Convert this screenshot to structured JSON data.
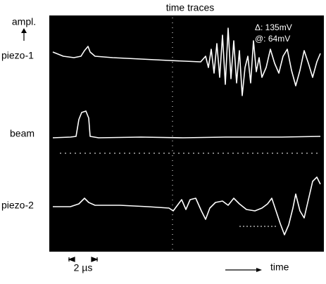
{
  "title": "time traces",
  "y_label": "ampl.",
  "traces": [
    {
      "label": "piezo-1"
    },
    {
      "label": "beam"
    },
    {
      "label": "piezo-2"
    }
  ],
  "readouts": [
    "Δ: 135mV",
    "@: 64mV"
  ],
  "scale_label": "2 µs",
  "x_label": "time"
}
